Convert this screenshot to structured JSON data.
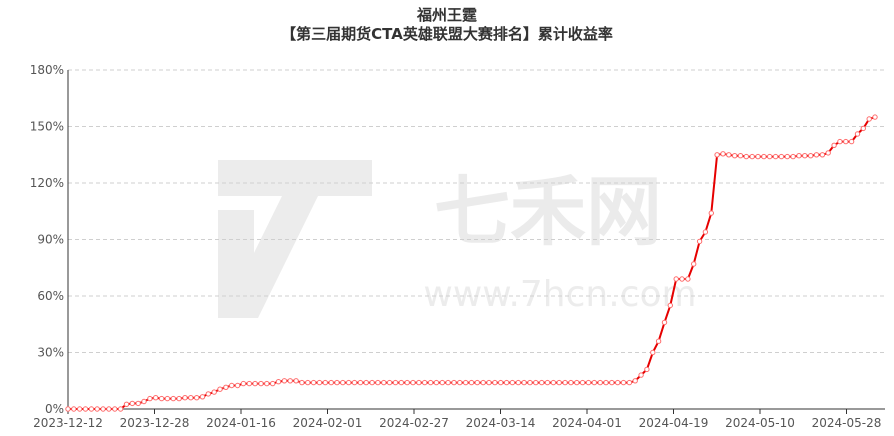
{
  "chart_data": {
    "type": "line",
    "title": "福州王霆",
    "subtitle": "【第三届期货CTA英雄联盟大赛排名】累计收益率",
    "xlabel": "",
    "ylabel": "",
    "y_ticks": [
      "0%",
      "30%",
      "60%",
      "90%",
      "120%",
      "150%",
      "180%"
    ],
    "ylim": [
      0,
      180
    ],
    "x_ticks": [
      "2023-12-12",
      "2023-12-28",
      "2024-01-16",
      "2024-02-01",
      "2024-02-27",
      "2024-03-14",
      "2024-04-01",
      "2024-04-19",
      "2024-05-10",
      "2024-05-28"
    ],
    "grid": true,
    "legend": "none",
    "line_color": "#e60000",
    "marker_color": "#ff6b6b",
    "series": [
      {
        "values": [
          0,
          0,
          0,
          0,
          0,
          0,
          0,
          0,
          0,
          0,
          2.5,
          3,
          3,
          4,
          5.5,
          6,
          5.5,
          5.5,
          5.5,
          5.5,
          6,
          6,
          6,
          6.5,
          8,
          9,
          10.5,
          11.5,
          12.5,
          12.5,
          13.5,
          13.5,
          13.5,
          13.5,
          13.5,
          13.5,
          14.5,
          15,
          15,
          15,
          14,
          14,
          14,
          14,
          14,
          14,
          14,
          14,
          14,
          14,
          14,
          14,
          14,
          14,
          14,
          14,
          14,
          14,
          14,
          14,
          14,
          14,
          14,
          14,
          14,
          14,
          14,
          14,
          14,
          14,
          14,
          14,
          14,
          14,
          14,
          14,
          14,
          14,
          14,
          14,
          14,
          14,
          14,
          14,
          14,
          14,
          14,
          14,
          14,
          14,
          14,
          14,
          14,
          14,
          14,
          14,
          14,
          15,
          18,
          21,
          30,
          36,
          46,
          55,
          69,
          69,
          69,
          77,
          89,
          94,
          104,
          135,
          135.5,
          135,
          134.5,
          134.5,
          134,
          134,
          134,
          134,
          134,
          134,
          134,
          134,
          134,
          134.5,
          134.5,
          134.5,
          135,
          135,
          136,
          140,
          142,
          142,
          142,
          146,
          149,
          154,
          155
        ]
      }
    ]
  },
  "watermark": {
    "main": "七禾网",
    "url": "www.7hcn.com",
    "color": "#ebebeb"
  }
}
